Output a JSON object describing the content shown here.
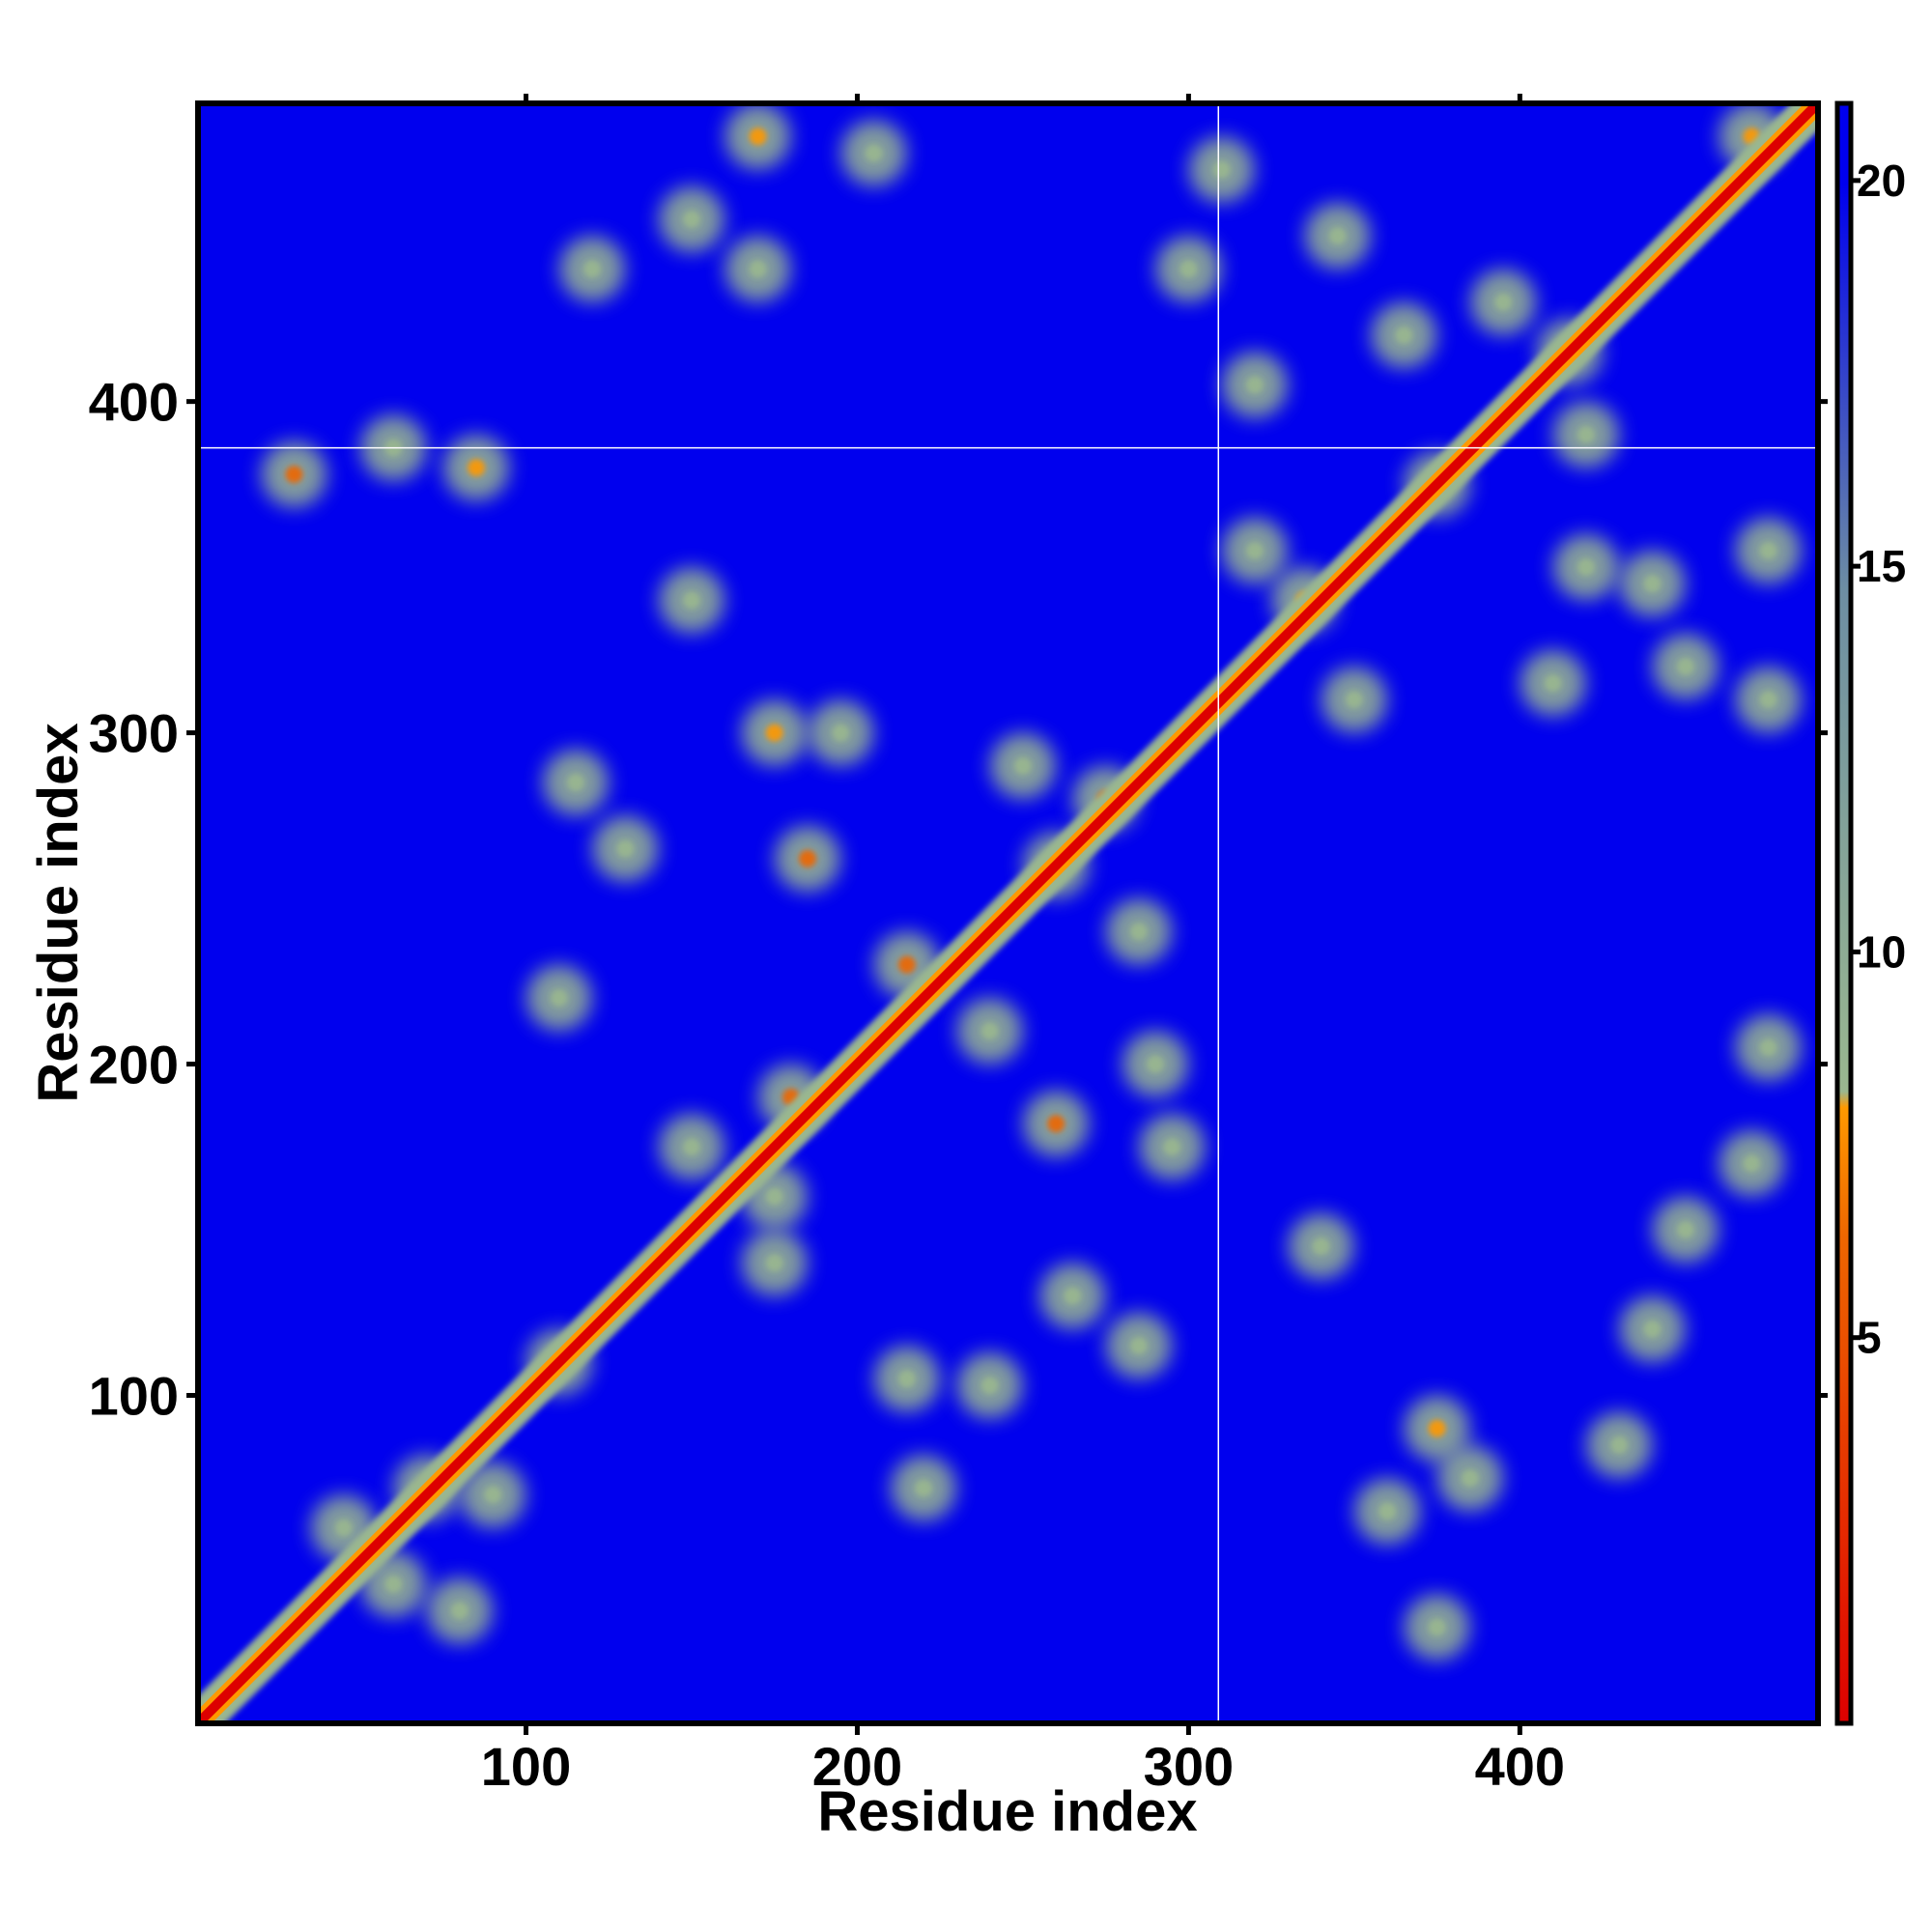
{
  "chart_data": {
    "type": "heatmap",
    "title": "",
    "xlabel": "Residue index",
    "ylabel": "Residue index",
    "xlim": [
      1,
      490
    ],
    "ylim": [
      1,
      490
    ],
    "x_ticks": [
      100,
      200,
      300,
      400
    ],
    "y_ticks": [
      100,
      200,
      300,
      400
    ],
    "grid": false,
    "colorbar": {
      "placement": "right",
      "range": [
        0,
        21
      ],
      "ticks": [
        5,
        10,
        15,
        20
      ],
      "colors": [
        "#dd0000",
        "#ee6600",
        "#ff9900",
        "#9ab78f",
        "#6d8ea3",
        "#0000ee"
      ]
    },
    "background_color": "#0000ee",
    "crosshair": {
      "x": 309,
      "y": 386,
      "color": "#ffffff"
    },
    "diagonal": {
      "from": 1,
      "to": 490,
      "color": "#dd0000"
    },
    "contact_regions": [
      {
        "x": 70,
        "y": 72,
        "value": 6
      },
      {
        "x": 45,
        "y": 60,
        "value": 10
      },
      {
        "x": 90,
        "y": 70,
        "value": 10
      },
      {
        "x": 110,
        "y": 110,
        "value": 8
      },
      {
        "x": 60,
        "y": 386,
        "value": 10
      },
      {
        "x": 85,
        "y": 380,
        "value": 8
      },
      {
        "x": 30,
        "y": 378,
        "value": 7
      },
      {
        "x": 120,
        "y": 440,
        "value": 11
      },
      {
        "x": 150,
        "y": 455,
        "value": 11
      },
      {
        "x": 170,
        "y": 480,
        "value": 8
      },
      {
        "x": 205,
        "y": 475,
        "value": 12
      },
      {
        "x": 170,
        "y": 440,
        "value": 11
      },
      {
        "x": 115,
        "y": 285,
        "value": 9
      },
      {
        "x": 130,
        "y": 265,
        "value": 10
      },
      {
        "x": 175,
        "y": 300,
        "value": 8
      },
      {
        "x": 195,
        "y": 300,
        "value": 12
      },
      {
        "x": 185,
        "y": 262,
        "value": 7
      },
      {
        "x": 110,
        "y": 220,
        "value": 11
      },
      {
        "x": 150,
        "y": 340,
        "value": 12
      },
      {
        "x": 215,
        "y": 230,
        "value": 7
      },
      {
        "x": 240,
        "y": 210,
        "value": 9
      },
      {
        "x": 180,
        "y": 190,
        "value": 7
      },
      {
        "x": 150,
        "y": 175,
        "value": 10
      },
      {
        "x": 175,
        "y": 160,
        "value": 9
      },
      {
        "x": 175,
        "y": 140,
        "value": 10
      },
      {
        "x": 250,
        "y": 290,
        "value": 11
      },
      {
        "x": 275,
        "y": 280,
        "value": 7
      },
      {
        "x": 260,
        "y": 260,
        "value": 9
      },
      {
        "x": 285,
        "y": 240,
        "value": 10
      },
      {
        "x": 260,
        "y": 182,
        "value": 7
      },
      {
        "x": 295,
        "y": 175,
        "value": 9
      },
      {
        "x": 290,
        "y": 200,
        "value": 11
      },
      {
        "x": 265,
        "y": 130,
        "value": 10
      },
      {
        "x": 285,
        "y": 115,
        "value": 9
      },
      {
        "x": 215,
        "y": 105,
        "value": 11
      },
      {
        "x": 240,
        "y": 103,
        "value": 11
      },
      {
        "x": 220,
        "y": 72,
        "value": 12
      },
      {
        "x": 335,
        "y": 340,
        "value": 8
      },
      {
        "x": 320,
        "y": 355,
        "value": 9
      },
      {
        "x": 350,
        "y": 310,
        "value": 9
      },
      {
        "x": 310,
        "y": 470,
        "value": 10
      },
      {
        "x": 300,
        "y": 440,
        "value": 10
      },
      {
        "x": 345,
        "y": 450,
        "value": 10
      },
      {
        "x": 365,
        "y": 420,
        "value": 9
      },
      {
        "x": 320,
        "y": 405,
        "value": 11
      },
      {
        "x": 375,
        "y": 375,
        "value": 6
      },
      {
        "x": 415,
        "y": 415,
        "value": 8
      },
      {
        "x": 420,
        "y": 390,
        "value": 9
      },
      {
        "x": 395,
        "y": 430,
        "value": 9
      },
      {
        "x": 420,
        "y": 350,
        "value": 10
      },
      {
        "x": 440,
        "y": 345,
        "value": 10
      },
      {
        "x": 450,
        "y": 320,
        "value": 10
      },
      {
        "x": 475,
        "y": 310,
        "value": 10
      },
      {
        "x": 410,
        "y": 315,
        "value": 11
      },
      {
        "x": 475,
        "y": 355,
        "value": 11
      },
      {
        "x": 470,
        "y": 480,
        "value": 8
      },
      {
        "x": 450,
        "y": 150,
        "value": 10
      },
      {
        "x": 440,
        "y": 120,
        "value": 10
      },
      {
        "x": 430,
        "y": 85,
        "value": 10
      },
      {
        "x": 470,
        "y": 170,
        "value": 9
      },
      {
        "x": 375,
        "y": 90,
        "value": 8
      },
      {
        "x": 385,
        "y": 75,
        "value": 9
      },
      {
        "x": 360,
        "y": 65,
        "value": 11
      },
      {
        "x": 375,
        "y": 30,
        "value": 9
      },
      {
        "x": 340,
        "y": 145,
        "value": 11
      },
      {
        "x": 475,
        "y": 205,
        "value": 12
      },
      {
        "x": 60,
        "y": 43,
        "value": 9
      },
      {
        "x": 80,
        "y": 35,
        "value": 11
      }
    ]
  }
}
